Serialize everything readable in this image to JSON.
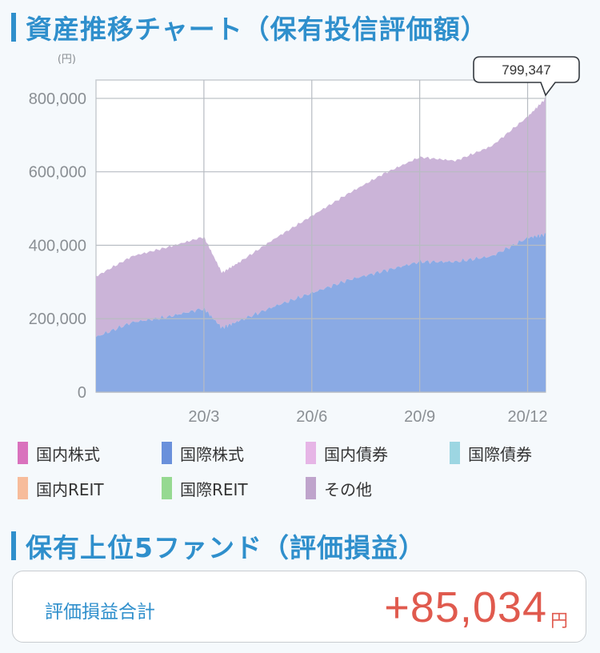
{
  "sections": {
    "asset_chart_title": "資産推移チャート（保有投信評価額）",
    "top_funds_title": "保有上位5ファンド（評価損益）"
  },
  "chart_data": {
    "type": "area",
    "title": "資産推移チャート（保有投信評価額）",
    "unit": "(円)",
    "stacked": true,
    "ylim": [
      0,
      850000
    ],
    "y_ticks": [
      0,
      200000,
      400000,
      600000,
      800000
    ],
    "y_tick_labels": [
      "0",
      "200,000",
      "400,000",
      "600,000",
      "800,000"
    ],
    "x_tick_labels": [
      "20/3",
      "20/6",
      "20/9",
      "20/12"
    ],
    "x_ticks": [
      "2020-03",
      "2020-06",
      "2020-09",
      "2020-12"
    ],
    "x": [
      "2019-12",
      "2020-01",
      "2020-02",
      "2020-03",
      "2020-03b",
      "2020-04",
      "2020-05",
      "2020-06",
      "2020-07",
      "2020-08",
      "2020-09",
      "2020-10",
      "2020-11",
      "2020-12",
      "2020-12b"
    ],
    "series": [
      {
        "values": [
          150000,
          190000,
          205000,
          228000,
          175000,
          195000,
          235000,
          270000,
          305000,
          330000,
          355000,
          355000,
          370000,
          420000,
          430000
        ]
      },
      {
        "values": [
          165000,
          180000,
          190000,
          195000,
          150000,
          160000,
          185000,
          210000,
          235000,
          265000,
          285000,
          275000,
          300000,
          330000,
          369347
        ]
      }
    ],
    "callout": {
      "label": "799,347",
      "value": 799347
    },
    "grid": true,
    "colors": [
      "#8aaae4",
      "#cbb4d8"
    ]
  },
  "legend": [
    {
      "label": "国内株式",
      "color": "#d972bd"
    },
    {
      "label": "国際株式",
      "color": "#6a90db"
    },
    {
      "label": "国内債券",
      "color": "#e6b5e6"
    },
    {
      "label": "国際債券",
      "color": "#9dd6e2"
    },
    {
      "label": "国内REIT",
      "color": "#f7bc9b"
    },
    {
      "label": "国際REIT",
      "color": "#96d991"
    },
    {
      "label": "その他",
      "color": "#bfa4cc"
    }
  ],
  "summary": {
    "label": "評価損益合計",
    "value": "+85,034",
    "unit": "円"
  }
}
